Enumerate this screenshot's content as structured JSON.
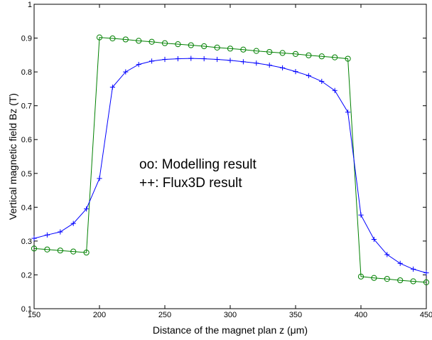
{
  "chart_data": {
    "type": "line",
    "title": "",
    "xlabel": "Distance of the magnet plan z (μm)",
    "ylabel": "Vertical magnetic field Bz (T)",
    "xlim": [
      150,
      450
    ],
    "ylim": [
      0.1,
      1
    ],
    "xticks": [
      "150",
      "200",
      "250",
      "300",
      "350",
      "400",
      "450"
    ],
    "yticks": [
      "0.1",
      "0.2",
      "0.3",
      "0.4",
      "0.5",
      "0.6",
      "0.7",
      "0.8",
      "0.9",
      "1"
    ],
    "grid": false,
    "annotations": [
      "oo: Modelling result",
      "++: Flux3D result"
    ],
    "series": [
      {
        "marker": "circle",
        "color": "#008000",
        "x": [
          150,
          160,
          170,
          180,
          190,
          200,
          210,
          220,
          230,
          240,
          250,
          260,
          270,
          280,
          290,
          300,
          310,
          320,
          330,
          340,
          350,
          360,
          370,
          380,
          390,
          400,
          410,
          420,
          430,
          440,
          450
        ],
        "y": [
          0.278,
          0.275,
          0.272,
          0.269,
          0.266,
          0.902,
          0.899,
          0.896,
          0.892,
          0.889,
          0.885,
          0.882,
          0.879,
          0.876,
          0.872,
          0.869,
          0.866,
          0.862,
          0.859,
          0.856,
          0.853,
          0.849,
          0.846,
          0.843,
          0.839,
          0.195,
          0.191,
          0.188,
          0.184,
          0.181,
          0.178
        ]
      },
      {
        "marker": "plus",
        "color": "#0000ff",
        "x": [
          150,
          160,
          170,
          180,
          190,
          200,
          210,
          220,
          230,
          240,
          250,
          260,
          270,
          280,
          290,
          300,
          310,
          320,
          330,
          340,
          350,
          360,
          370,
          380,
          390,
          400,
          410,
          420,
          430,
          440,
          450
        ],
        "y": [
          0.308,
          0.318,
          0.327,
          0.352,
          0.395,
          0.485,
          0.755,
          0.8,
          0.822,
          0.832,
          0.837,
          0.839,
          0.84,
          0.839,
          0.837,
          0.834,
          0.83,
          0.826,
          0.82,
          0.812,
          0.801,
          0.789,
          0.772,
          0.745,
          0.681,
          0.377,
          0.305,
          0.26,
          0.234,
          0.217,
          0.206
        ]
      }
    ]
  }
}
